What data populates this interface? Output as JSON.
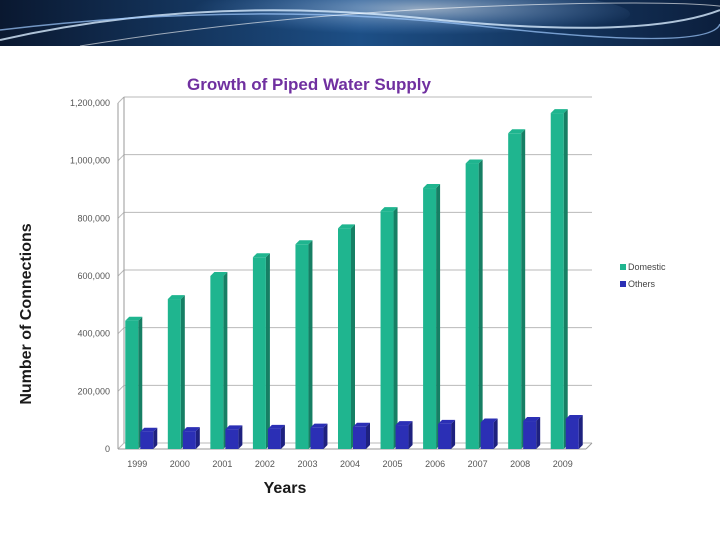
{
  "chart_data": {
    "type": "bar",
    "title": "Growth of Piped Water Supply",
    "xlabel": "Years",
    "ylabel": "Number of Connections",
    "categories": [
      "1999",
      "2000",
      "2001",
      "2002",
      "2003",
      "2004",
      "2005",
      "2006",
      "2007",
      "2008",
      "2009"
    ],
    "series": [
      {
        "name": "Domestic",
        "color": "#1FB58F",
        "values": [
          445000,
          520000,
          600000,
          665000,
          710000,
          765000,
          825000,
          905000,
          990000,
          1095000,
          1165000
        ]
      },
      {
        "name": "Others",
        "color": "#2B2FB5",
        "values": [
          60000,
          62000,
          68000,
          70000,
          74000,
          77000,
          83000,
          87000,
          92000,
          97000,
          104000
        ]
      }
    ],
    "yticks": [
      "0",
      "200,000",
      "400,000",
      "600,000",
      "800,000",
      "1,000,000",
      "1,200,000"
    ],
    "ylim": [
      0,
      1200000
    ],
    "grid": true,
    "legend_position": "right"
  },
  "theme": {
    "grid_color": "#b9b9b9",
    "banner_colors": [
      "#0b1a33",
      "#2f6fb0",
      "#cfe7ff"
    ]
  }
}
